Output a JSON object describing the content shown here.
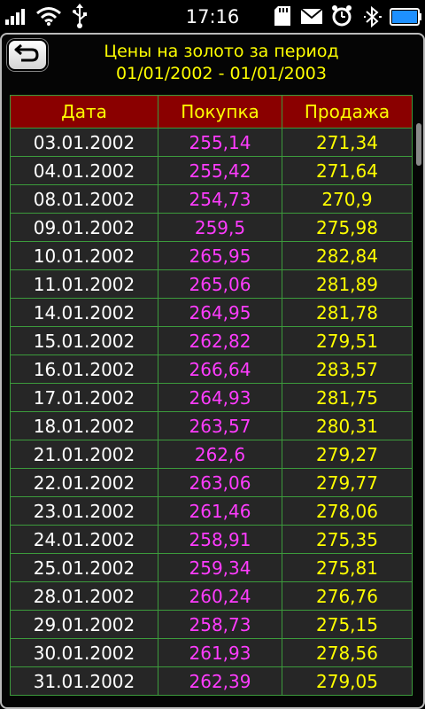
{
  "status_bar": {
    "time": "17:16"
  },
  "header": {
    "title_line1": "Цены на золото за период",
    "title_line2": "01/01/2002 - 01/01/2003"
  },
  "table": {
    "columns": [
      "Дата",
      "Покупка",
      "Продажа"
    ],
    "rows": [
      [
        "03.01.2002",
        "255,14",
        "271,34"
      ],
      [
        "04.01.2002",
        "255,42",
        "271,64"
      ],
      [
        "08.01.2002",
        "254,73",
        "270,9"
      ],
      [
        "09.01.2002",
        "259,5",
        "275,98"
      ],
      [
        "10.01.2002",
        "265,95",
        "282,84"
      ],
      [
        "11.01.2002",
        "265,06",
        "281,89"
      ],
      [
        "14.01.2002",
        "264,95",
        "281,78"
      ],
      [
        "15.01.2002",
        "262,82",
        "279,51"
      ],
      [
        "16.01.2002",
        "266,64",
        "283,57"
      ],
      [
        "17.01.2002",
        "264,93",
        "281,75"
      ],
      [
        "18.01.2002",
        "263,57",
        "280,31"
      ],
      [
        "21.01.2002",
        "262,6",
        "279,27"
      ],
      [
        "22.01.2002",
        "263,06",
        "279,77"
      ],
      [
        "23.01.2002",
        "261,46",
        "278,06"
      ],
      [
        "24.01.2002",
        "258,91",
        "275,35"
      ],
      [
        "25.01.2002",
        "259,34",
        "275,81"
      ],
      [
        "28.01.2002",
        "260,24",
        "276,76"
      ],
      [
        "29.01.2002",
        "258,73",
        "275,15"
      ],
      [
        "30.01.2002",
        "261,93",
        "278,56"
      ],
      [
        "31.01.2002",
        "262,39",
        "279,05"
      ]
    ]
  },
  "icons": {
    "signal": "signal-icon",
    "wifi": "wifi-icon",
    "usb": "usb-icon",
    "sd_card": "sd-card-icon",
    "mail": "mail-icon",
    "alarm": "alarm-icon",
    "bluetooth": "bluetooth-icon",
    "battery": "battery-icon",
    "back": "back-arrow-icon"
  },
  "colors": {
    "header_bg": "#8a0000",
    "header_text": "#ffff00",
    "grid": "#3c9b3c",
    "date": "#ffffff",
    "buy": "#ff3cff",
    "sell": "#ffff00",
    "battery": "#1e90ff"
  }
}
